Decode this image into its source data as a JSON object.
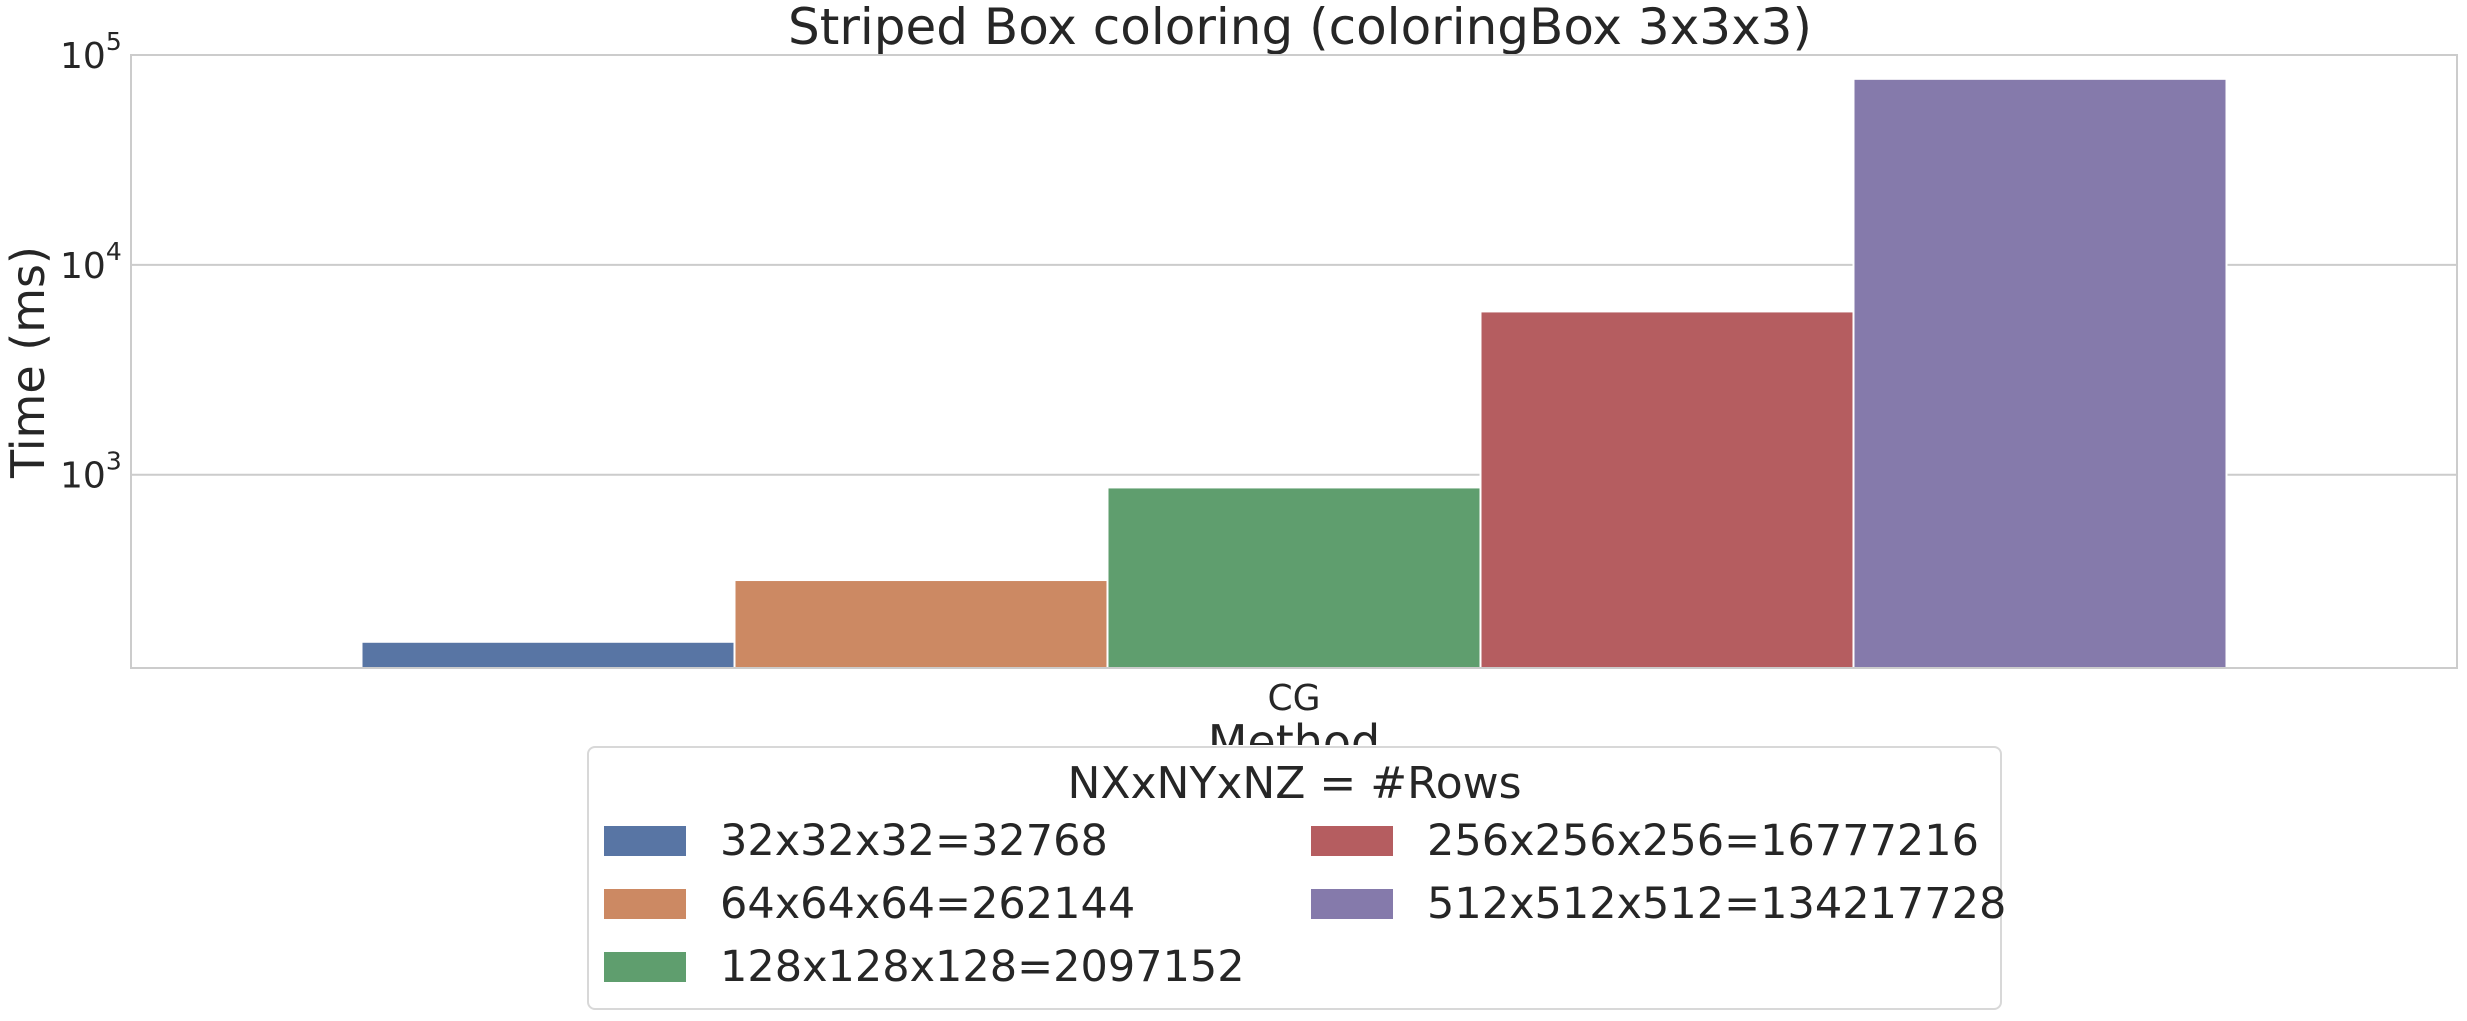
{
  "chart_data": {
    "type": "bar",
    "title": "Striped Box coloring (coloringBox 3x3x3)",
    "xlabel": "Method",
    "ylabel": "Time (ms)",
    "yscale": "log",
    "ylim": [
      120,
      100000
    ],
    "yticks": [
      {
        "value": 1000,
        "base": "10",
        "exp": "3"
      },
      {
        "value": 10000,
        "base": "10",
        "exp": "4"
      },
      {
        "value": 100000,
        "base": "10",
        "exp": "5"
      }
    ],
    "categories": [
      "CG"
    ],
    "grid": true,
    "legend_title": "NXxNYxNZ = #Rows",
    "legend_position": "bottom-center",
    "series": [
      {
        "name": "32x32x32=32768",
        "values": [
          160
        ],
        "color": "#5875a4"
      },
      {
        "name": "64x64x64=262144",
        "values": [
          315
        ],
        "color": "#cc8963"
      },
      {
        "name": "128x128x128=2097152",
        "values": [
          870
        ],
        "color": "#5f9e6e"
      },
      {
        "name": "256x256x256=16777216",
        "values": [
          6000
        ],
        "color": "#b55d60"
      },
      {
        "name": "512x512x512=134217728",
        "values": [
          77000
        ],
        "color": "#857aab"
      }
    ]
  }
}
